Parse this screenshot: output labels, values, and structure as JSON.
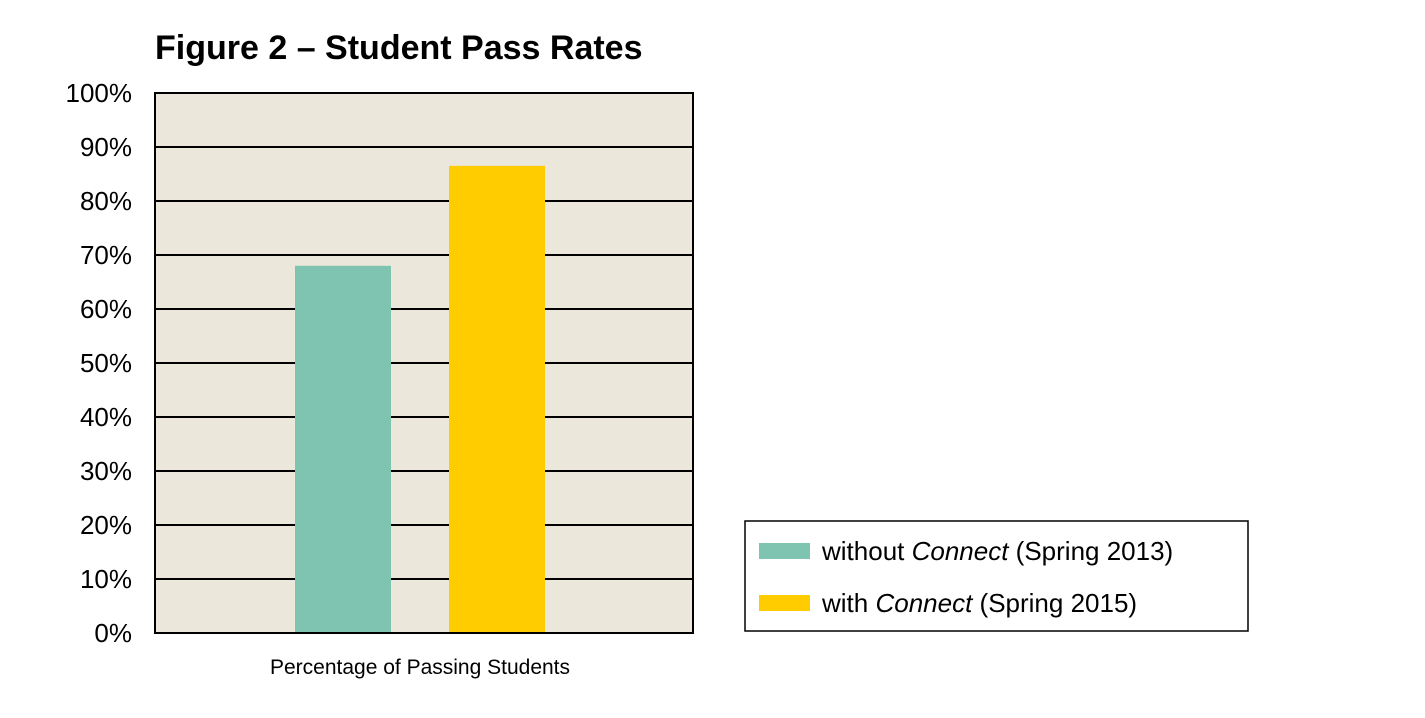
{
  "chart_data": {
    "type": "bar",
    "title": "Figure 2 – Student Pass Rates",
    "xlabel": "Percentage of Passing Students",
    "ylabel": "",
    "categories": [
      "Percentage of Passing Students"
    ],
    "ylim": [
      0,
      100
    ],
    "ytick_values": [
      0,
      10,
      20,
      30,
      40,
      50,
      60,
      70,
      80,
      90,
      100
    ],
    "ytick_labels": [
      "0%",
      "10%",
      "20%",
      "30%",
      "40%",
      "50%",
      "60%",
      "70%",
      "80%",
      "90%",
      "100%"
    ],
    "grid": true,
    "legend_position": "bottom-right",
    "plot_background": "#ebe7db",
    "series": [
      {
        "legend_parts": [
          {
            "text": "without ",
            "italic": false
          },
          {
            "text": "Connect",
            "italic": true
          },
          {
            "text": " (Spring 2013)",
            "italic": false
          }
        ],
        "color": "#7fc4b0",
        "values": [
          68
        ]
      },
      {
        "legend_parts": [
          {
            "text": "with ",
            "italic": false
          },
          {
            "text": "Connect",
            "italic": true
          },
          {
            "text": " (Spring 2015)",
            "italic": false
          }
        ],
        "color": "#ffcc00",
        "values": [
          86.5
        ]
      }
    ]
  }
}
